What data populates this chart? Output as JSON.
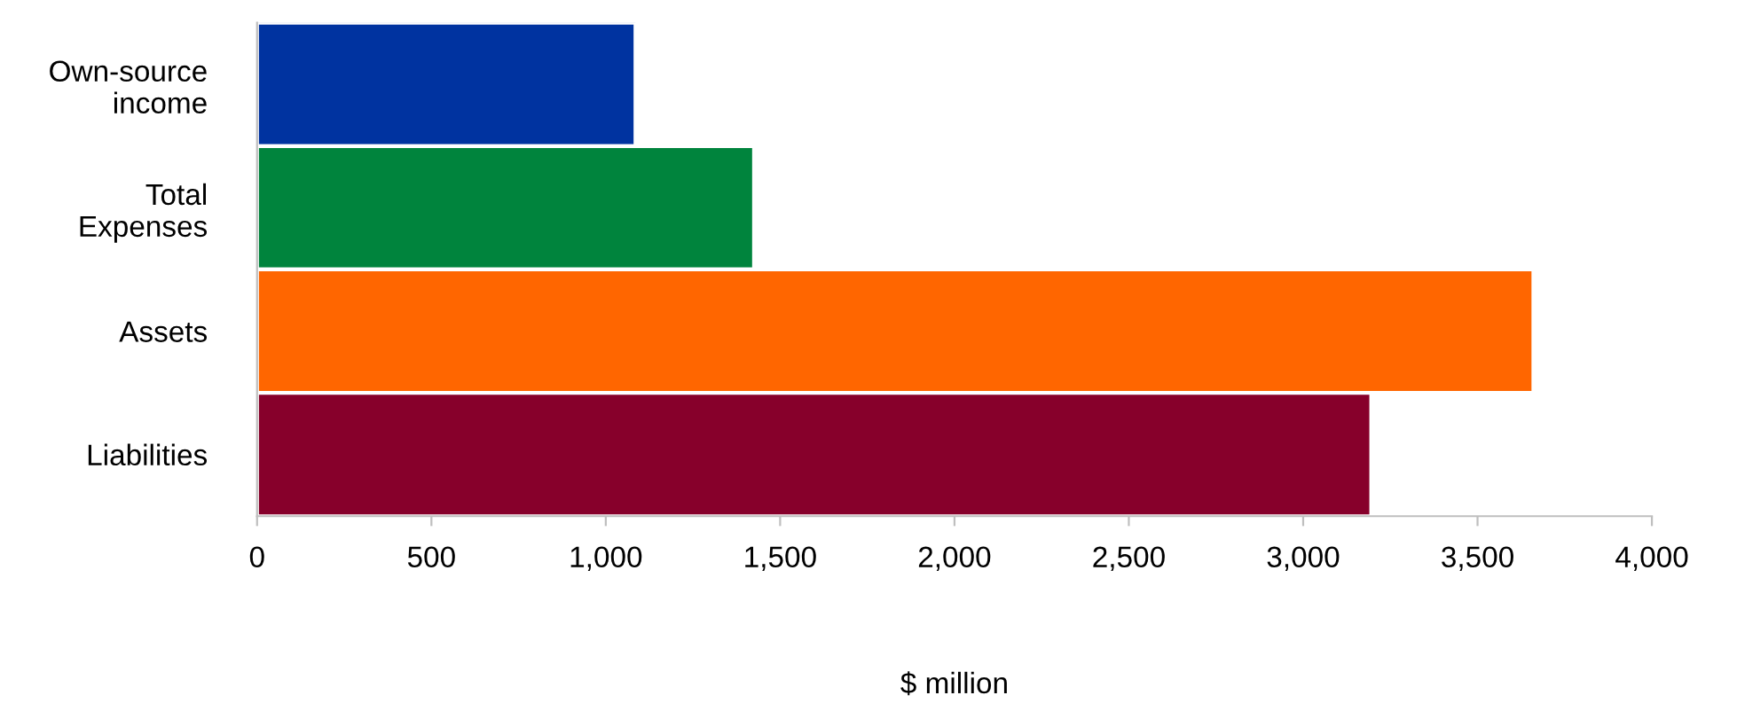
{
  "chart_data": {
    "type": "bar",
    "orientation": "horizontal",
    "xlabel": "$ million",
    "categories": [
      "Own-source\nincome",
      "Total\nExpenses",
      "Assets",
      "Liabilities"
    ],
    "values": [
      1085,
      1425,
      3660,
      3195
    ],
    "colors": [
      "#0033a0",
      "#00843d",
      "#ff6600",
      "#87002b"
    ],
    "xlim": [
      0,
      4000
    ],
    "xticks": [
      0,
      500,
      {
        "value": 1000,
        "label": "1,000"
      },
      {
        "value": 1500,
        "label": "1,500"
      },
      {
        "value": 2000,
        "label": "2,000"
      },
      {
        "value": 2500,
        "label": "2,500"
      },
      {
        "value": 3000,
        "label": "3,000"
      },
      {
        "value": 3500,
        "label": "3,500"
      },
      {
        "value": 4000,
        "label": "4,000"
      }
    ],
    "grid": false,
    "legend": false
  }
}
